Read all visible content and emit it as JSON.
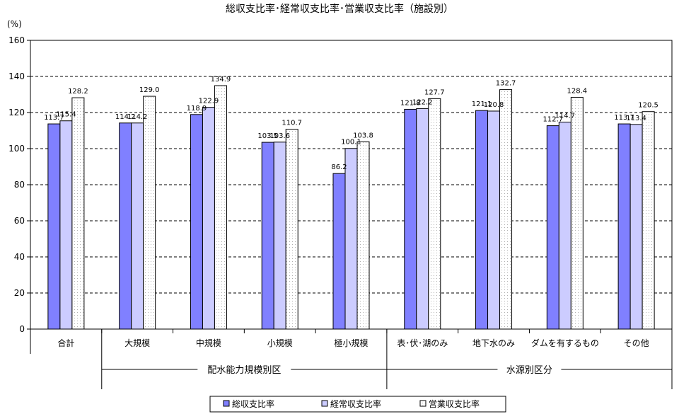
{
  "chart_data": {
    "type": "bar",
    "title": "総収支比率･経常収支比率･営業収支比率（施設別）",
    "ylabel": "(%)",
    "ylim": [
      0,
      160
    ],
    "yticks": [
      0,
      20,
      40,
      60,
      80,
      100,
      120,
      140,
      160
    ],
    "grid": true,
    "legend_position": "bottom",
    "categories": [
      "合計",
      "大規模",
      "中規模",
      "小規模",
      "極小規模",
      "表･伏･湖のみ",
      "地下水のみ",
      "ダムを有するもの",
      "その他"
    ],
    "groups": [
      {
        "label": "配水能力規模別区",
        "first": 1,
        "last": 4
      },
      {
        "label": "水源別区分",
        "first": 5,
        "last": 8
      }
    ],
    "series": [
      {
        "name": "総収支比率",
        "color": "#8080ff",
        "values": [
          113.7,
          114.2,
          118.9,
          103.5,
          86.2,
          121.8,
          121.1,
          112.7,
          113.7
        ]
      },
      {
        "name": "経常収支比率",
        "color": "#ccccff",
        "values": [
          115.4,
          114.2,
          122.9,
          103.6,
          100.1,
          122.2,
          120.8,
          114.7,
          113.4
        ]
      },
      {
        "name": "営業収支比率",
        "color": "#ffffff",
        "values": [
          128.2,
          129.0,
          134.9,
          110.7,
          103.8,
          127.7,
          132.7,
          128.4,
          120.5
        ]
      }
    ],
    "data_labels": [
      [
        "113.7",
        "114.2",
        "118.9",
        "103.5",
        "86.2",
        "121.8",
        "121.1",
        "112.7",
        "113.7"
      ],
      [
        "115.4",
        "114.2",
        "122.9",
        "103.6",
        "100.1",
        "122.2",
        "120.8",
        "114.7",
        "113.4"
      ],
      [
        "128.2",
        "129.0",
        "134.9",
        "110.7",
        "103.8",
        "127.7",
        "132.7",
        "128.4",
        "120.5"
      ]
    ]
  }
}
